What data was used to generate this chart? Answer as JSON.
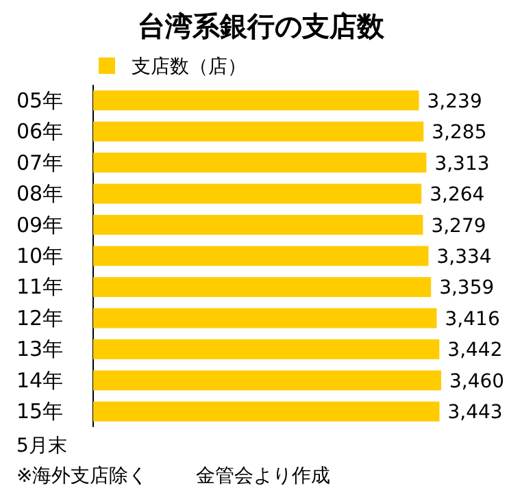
{
  "chart_data": {
    "type": "bar",
    "orientation": "horizontal",
    "title": "台湾系銀行の支店数",
    "categories": [
      "05年",
      "06年",
      "07年",
      "08年",
      "09年",
      "10年",
      "11年",
      "12年",
      "13年",
      "14年",
      "15年"
    ],
    "series": [
      {
        "name": "支店数（店）",
        "color": "#ffcc00",
        "values": [
          3239,
          3285,
          3313,
          3264,
          3279,
          3334,
          3359,
          3416,
          3442,
          3460,
          3443
        ],
        "value_labels": [
          "3,239",
          "3,285",
          "3,313",
          "3,264",
          "3,279",
          "3,334",
          "3,359",
          "3,416",
          "3,442",
          "3,460",
          "3,443"
        ]
      }
    ],
    "legend": "top",
    "annotations": [
      "5月末",
      "※海外支店除く",
      "金管会より作成"
    ]
  }
}
